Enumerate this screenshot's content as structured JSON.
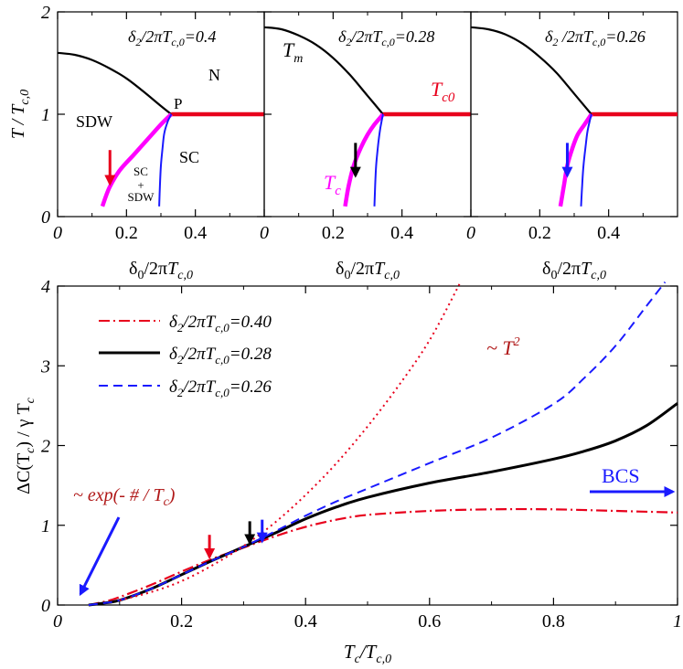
{
  "colors": {
    "black": "#000000",
    "red": "#e8001c",
    "magenta": "#ff00ff",
    "blue": "#1a1aff",
    "thick_red": "#e8001c"
  },
  "chart_data": [
    {
      "type": "line",
      "panel": "top-left",
      "title_parts": {
        "a": "δ",
        "b": "2",
        "c": "/2π",
        "d": "T",
        "e": "c,0",
        "f": "=0.4"
      },
      "xlabel_parts": {
        "a": "δ",
        "b": "0",
        "c": "/2π",
        "d": "T",
        "e": "c,0"
      },
      "ylabel_parts": {
        "a": "T / T",
        "b": "c,0"
      },
      "xlim": [
        0,
        0.6
      ],
      "ylim": [
        0,
        2
      ],
      "xticks": [
        0,
        0.2,
        0.4
      ],
      "xtick_labels": [
        "0",
        "0.2",
        "0.4"
      ],
      "yticks": [
        0,
        1,
        2
      ],
      "ytick_labels": [
        "0",
        "1",
        "2"
      ],
      "region_labels": {
        "sdw": "SDW",
        "n": "N",
        "p": "P",
        "sc": "SC",
        "scsdw_1": "SC",
        "scsdw_2": "+",
        "scsdw_3": "SDW"
      },
      "series": [
        {
          "role": "Tm",
          "color": "black",
          "x": [
            0,
            0.05,
            0.1,
            0.15,
            0.2,
            0.25,
            0.3,
            0.33
          ],
          "y": [
            1.6,
            1.58,
            1.53,
            1.45,
            1.35,
            1.22,
            1.08,
            1.0
          ]
        },
        {
          "role": "Tc0",
          "color": "thick_red",
          "x": [
            0.33,
            0.6
          ],
          "y": [
            1.0,
            1.0
          ]
        },
        {
          "role": "Tc",
          "color": "magenta",
          "x": [
            0.13,
            0.15,
            0.18,
            0.22,
            0.26,
            0.3,
            0.33
          ],
          "y": [
            0.1,
            0.28,
            0.45,
            0.6,
            0.75,
            0.9,
            1.0
          ]
        },
        {
          "role": "SC-SDW",
          "color": "blue",
          "x": [
            0.295,
            0.297,
            0.3,
            0.305,
            0.31,
            0.32,
            0.33
          ],
          "y": [
            0.1,
            0.3,
            0.5,
            0.68,
            0.82,
            0.93,
            1.0
          ]
        }
      ],
      "arrow": {
        "color": "red",
        "x": 0.152,
        "y_from": 0.65,
        "y_to": 0.32
      }
    },
    {
      "type": "line",
      "panel": "top-middle",
      "title_parts": {
        "a": "δ",
        "b": "2",
        "c": "/2π",
        "d": "T",
        "e": "c,0",
        "f": "=0.28"
      },
      "xlabel_parts": {
        "a": "δ",
        "b": "0",
        "c": "/2π",
        "d": "T",
        "e": "c,0"
      },
      "xlim": [
        0,
        0.6
      ],
      "ylim": [
        0,
        2
      ],
      "xticks": [
        0,
        0.2,
        0.4
      ],
      "xtick_labels": [
        "0",
        "0.2",
        "0.4"
      ],
      "curve_labels": {
        "tm_main": "T",
        "tm_sub": "m",
        "tc0_main": "T",
        "tc0_sub": "c0",
        "tc_main": "T",
        "tc_sub": "c"
      },
      "series": [
        {
          "role": "Tm",
          "color": "black",
          "x": [
            0,
            0.05,
            0.1,
            0.15,
            0.2,
            0.25,
            0.3,
            0.345
          ],
          "y": [
            1.85,
            1.83,
            1.77,
            1.68,
            1.55,
            1.38,
            1.18,
            1.0
          ]
        },
        {
          "role": "Tc0",
          "color": "thick_red",
          "x": [
            0.345,
            0.6
          ],
          "y": [
            1.0,
            1.0
          ]
        },
        {
          "role": "Tc",
          "color": "magenta",
          "x": [
            0.235,
            0.245,
            0.26,
            0.28,
            0.3,
            0.32,
            0.345
          ],
          "y": [
            0.1,
            0.3,
            0.5,
            0.67,
            0.8,
            0.9,
            1.0
          ]
        },
        {
          "role": "SC-SDW",
          "color": "blue",
          "x": [
            0.32,
            0.322,
            0.325,
            0.33,
            0.335,
            0.34,
            0.345
          ],
          "y": [
            0.1,
            0.3,
            0.5,
            0.68,
            0.82,
            0.92,
            1.0
          ]
        }
      ],
      "arrow": {
        "color": "black",
        "x": 0.265,
        "y_from": 0.72,
        "y_to": 0.4
      }
    },
    {
      "type": "line",
      "panel": "top-right",
      "title_parts": {
        "a": "δ",
        "b": "2",
        "c": " /2π",
        "d": "T",
        "e": "c,0",
        "f": "=0.26"
      },
      "xlabel_parts": {
        "a": "δ",
        "b": "0",
        "c": "/2π",
        "d": "T",
        "e": "c,0"
      },
      "xlim": [
        0,
        0.6
      ],
      "ylim": [
        0,
        2
      ],
      "xticks": [
        0,
        0.2,
        0.4
      ],
      "xtick_labels": [
        "0",
        "0.2",
        "0.4"
      ],
      "series": [
        {
          "role": "Tm",
          "color": "black",
          "x": [
            0,
            0.05,
            0.1,
            0.15,
            0.2,
            0.25,
            0.3,
            0.35
          ],
          "y": [
            1.85,
            1.83,
            1.78,
            1.69,
            1.56,
            1.4,
            1.2,
            1.0
          ]
        },
        {
          "role": "Tc0",
          "color": "thick_red",
          "x": [
            0.35,
            0.6
          ],
          "y": [
            1.0,
            1.0
          ]
        },
        {
          "role": "Tc",
          "color": "magenta",
          "x": [
            0.26,
            0.27,
            0.28,
            0.295,
            0.31,
            0.33,
            0.35
          ],
          "y": [
            0.1,
            0.3,
            0.5,
            0.67,
            0.8,
            0.9,
            1.0
          ]
        },
        {
          "role": "SC-SDW",
          "color": "blue",
          "x": [
            0.32,
            0.323,
            0.327,
            0.333,
            0.338,
            0.344,
            0.35
          ],
          "y": [
            0.1,
            0.3,
            0.5,
            0.68,
            0.82,
            0.92,
            1.0
          ]
        }
      ],
      "arrow": {
        "color": "blue",
        "x": 0.28,
        "y_from": 0.72,
        "y_to": 0.4
      }
    },
    {
      "type": "line",
      "panel": "bottom",
      "xlabel_parts": {
        "a": "T",
        "b": "c",
        "c": "/",
        "d": "T",
        "e": "c,0"
      },
      "ylabel_parts": {
        "a": "ΔC(T",
        "b": "c",
        "c": ")  / γ T",
        "d": "c"
      },
      "xlim": [
        0,
        1
      ],
      "ylim": [
        0,
        4
      ],
      "xticks": [
        0,
        0.2,
        0.4,
        0.6,
        0.8,
        1
      ],
      "xtick_labels": [
        "0",
        "0.2",
        "0.4",
        "0.6",
        "0.8",
        "1"
      ],
      "yticks": [
        0,
        1,
        2,
        3,
        4
      ],
      "ytick_labels": [
        "0",
        "1",
        "2",
        "3",
        "4"
      ],
      "legend_position": "top-left",
      "legend": [
        {
          "a": "δ",
          "b": "2",
          "c": "/2π",
          "d": "T",
          "e": "c,0",
          "f": "=0.40",
          "color": "red",
          "dash": "dashdot"
        },
        {
          "a": "δ",
          "b": "2",
          "c": "/2π",
          "d": "T",
          "e": "c,0",
          "f": "=0.28",
          "color": "black",
          "dash": "solid"
        },
        {
          "a": "δ",
          "b": "2",
          "c": "/2π",
          "d": "T",
          "e": "c,0",
          "f": "=0.26",
          "color": "blue",
          "dash": "dashed"
        }
      ],
      "annotations": {
        "t2_a": "~ ",
        "t2_b": "T",
        "t2_c": "2",
        "exp_a": "~ exp(- # / ",
        "exp_b": "T",
        "exp_c": "c",
        "exp_d": ")",
        "bcs": "BCS"
      },
      "series": [
        {
          "ref": 0,
          "color": "red",
          "dash": "dashdot",
          "x": [
            0.05,
            0.08,
            0.1,
            0.15,
            0.2,
            0.25,
            0.3,
            0.35,
            0.4,
            0.45,
            0.5,
            0.6,
            0.7,
            0.8,
            0.9,
            1.0
          ],
          "y": [
            0.0,
            0.05,
            0.1,
            0.25,
            0.42,
            0.58,
            0.72,
            0.86,
            0.98,
            1.07,
            1.13,
            1.18,
            1.2,
            1.2,
            1.18,
            1.16
          ]
        },
        {
          "ref": 1,
          "color": "black",
          "dash": "solid",
          "x": [
            0.05,
            0.07,
            0.1,
            0.15,
            0.2,
            0.25,
            0.3,
            0.35,
            0.4,
            0.45,
            0.5,
            0.6,
            0.7,
            0.8,
            0.85,
            0.9,
            0.95,
            1.0
          ],
          "y": [
            0.0,
            0.02,
            0.06,
            0.2,
            0.38,
            0.56,
            0.73,
            0.9,
            1.08,
            1.23,
            1.35,
            1.53,
            1.67,
            1.83,
            1.93,
            2.06,
            2.25,
            2.53
          ]
        },
        {
          "ref": 2,
          "color": "blue",
          "dash": "dashed",
          "x": [
            0.05,
            0.07,
            0.1,
            0.15,
            0.2,
            0.25,
            0.3,
            0.35,
            0.4,
            0.45,
            0.5,
            0.6,
            0.7,
            0.8,
            0.85,
            0.9,
            0.95,
            0.98
          ],
          "y": [
            0.0,
            0.02,
            0.06,
            0.2,
            0.38,
            0.56,
            0.73,
            0.92,
            1.12,
            1.3,
            1.46,
            1.78,
            2.1,
            2.52,
            2.85,
            3.25,
            3.75,
            4.05
          ]
        },
        {
          "ref": "T2",
          "color": "red",
          "dash": "dotted",
          "x": [
            0.1,
            0.15,
            0.2,
            0.25,
            0.3,
            0.35,
            0.4,
            0.45,
            0.5,
            0.55,
            0.6,
            0.65
          ],
          "y": [
            0.06,
            0.16,
            0.3,
            0.5,
            0.74,
            1.03,
            1.38,
            1.78,
            2.24,
            2.75,
            3.32,
            4.05
          ]
        }
      ],
      "arrows": [
        {
          "color": "red",
          "x": 0.245,
          "y_from": 0.88,
          "y_to": 0.6
        },
        {
          "color": "black",
          "x": 0.31,
          "y_from": 1.05,
          "y_to": 0.78
        },
        {
          "color": "blue",
          "x": 0.33,
          "y_from": 1.07,
          "y_to": 0.8
        }
      ]
    }
  ]
}
